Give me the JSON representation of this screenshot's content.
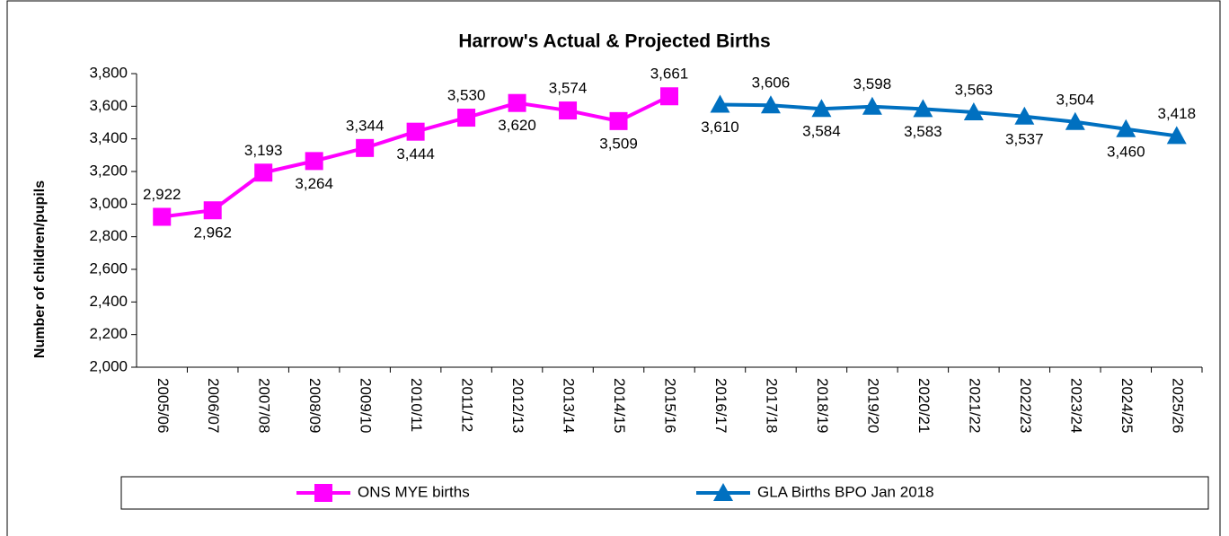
{
  "chart_data": {
    "type": "line",
    "title": "Harrow's Actual & Projected Births",
    "y_label": "Number of children/pupils",
    "categories": [
      "2005/06",
      "2006/07",
      "2007/08",
      "2008/09",
      "2009/10",
      "2010/11",
      "2011/12",
      "2012/13",
      "2013/14",
      "2014/15",
      "2015/16",
      "2016/17",
      "2017/18",
      "2018/19",
      "2019/20",
      "2020/21",
      "2021/22",
      "2022/23",
      "2023/24",
      "2024/25",
      "2025/26"
    ],
    "series": [
      {
        "name": "ONS MYE births",
        "color": "#ff00ff",
        "marker": "square",
        "values": [
          2922,
          2962,
          3193,
          3264,
          3344,
          3444,
          3530,
          3620,
          3574,
          3509,
          3661,
          null,
          null,
          null,
          null,
          null,
          null,
          null,
          null,
          null,
          null
        ],
        "value_labels": [
          "2,922",
          "2,962",
          "3,193",
          "3,264",
          "3,344",
          "3,444",
          "3,530",
          "3,620",
          "3,574",
          "3,509",
          "3,661",
          null,
          null,
          null,
          null,
          null,
          null,
          null,
          null,
          null,
          null
        ]
      },
      {
        "name": "GLA Births BPO Jan 2018",
        "color": "#0070c0",
        "marker": "triangle",
        "values": [
          null,
          null,
          null,
          null,
          null,
          null,
          null,
          null,
          null,
          null,
          null,
          3610,
          3606,
          3584,
          3598,
          3583,
          3563,
          3537,
          3504,
          3460,
          3418
        ],
        "value_labels": [
          null,
          null,
          null,
          null,
          null,
          null,
          null,
          null,
          null,
          null,
          null,
          "3,610",
          "3,606",
          "3,584",
          "3,598",
          "3,583",
          "3,563",
          "3,537",
          "3,504",
          "3,460",
          "3,418"
        ]
      }
    ],
    "ylim": [
      2000,
      3800
    ],
    "yticks": [
      {
        "value": 2000,
        "label": "2,000"
      },
      {
        "value": 2200,
        "label": "2,200"
      },
      {
        "value": 2400,
        "label": "2,400"
      },
      {
        "value": 2600,
        "label": "2,600"
      },
      {
        "value": 2800,
        "label": "2,800"
      },
      {
        "value": 3000,
        "label": "3,000"
      },
      {
        "value": 3200,
        "label": "3,200"
      },
      {
        "value": 3400,
        "label": "3,400"
      },
      {
        "value": 3600,
        "label": "3,600"
      },
      {
        "value": 3800,
        "label": "3,800"
      }
    ],
    "grid": false,
    "legend": "bottom"
  }
}
